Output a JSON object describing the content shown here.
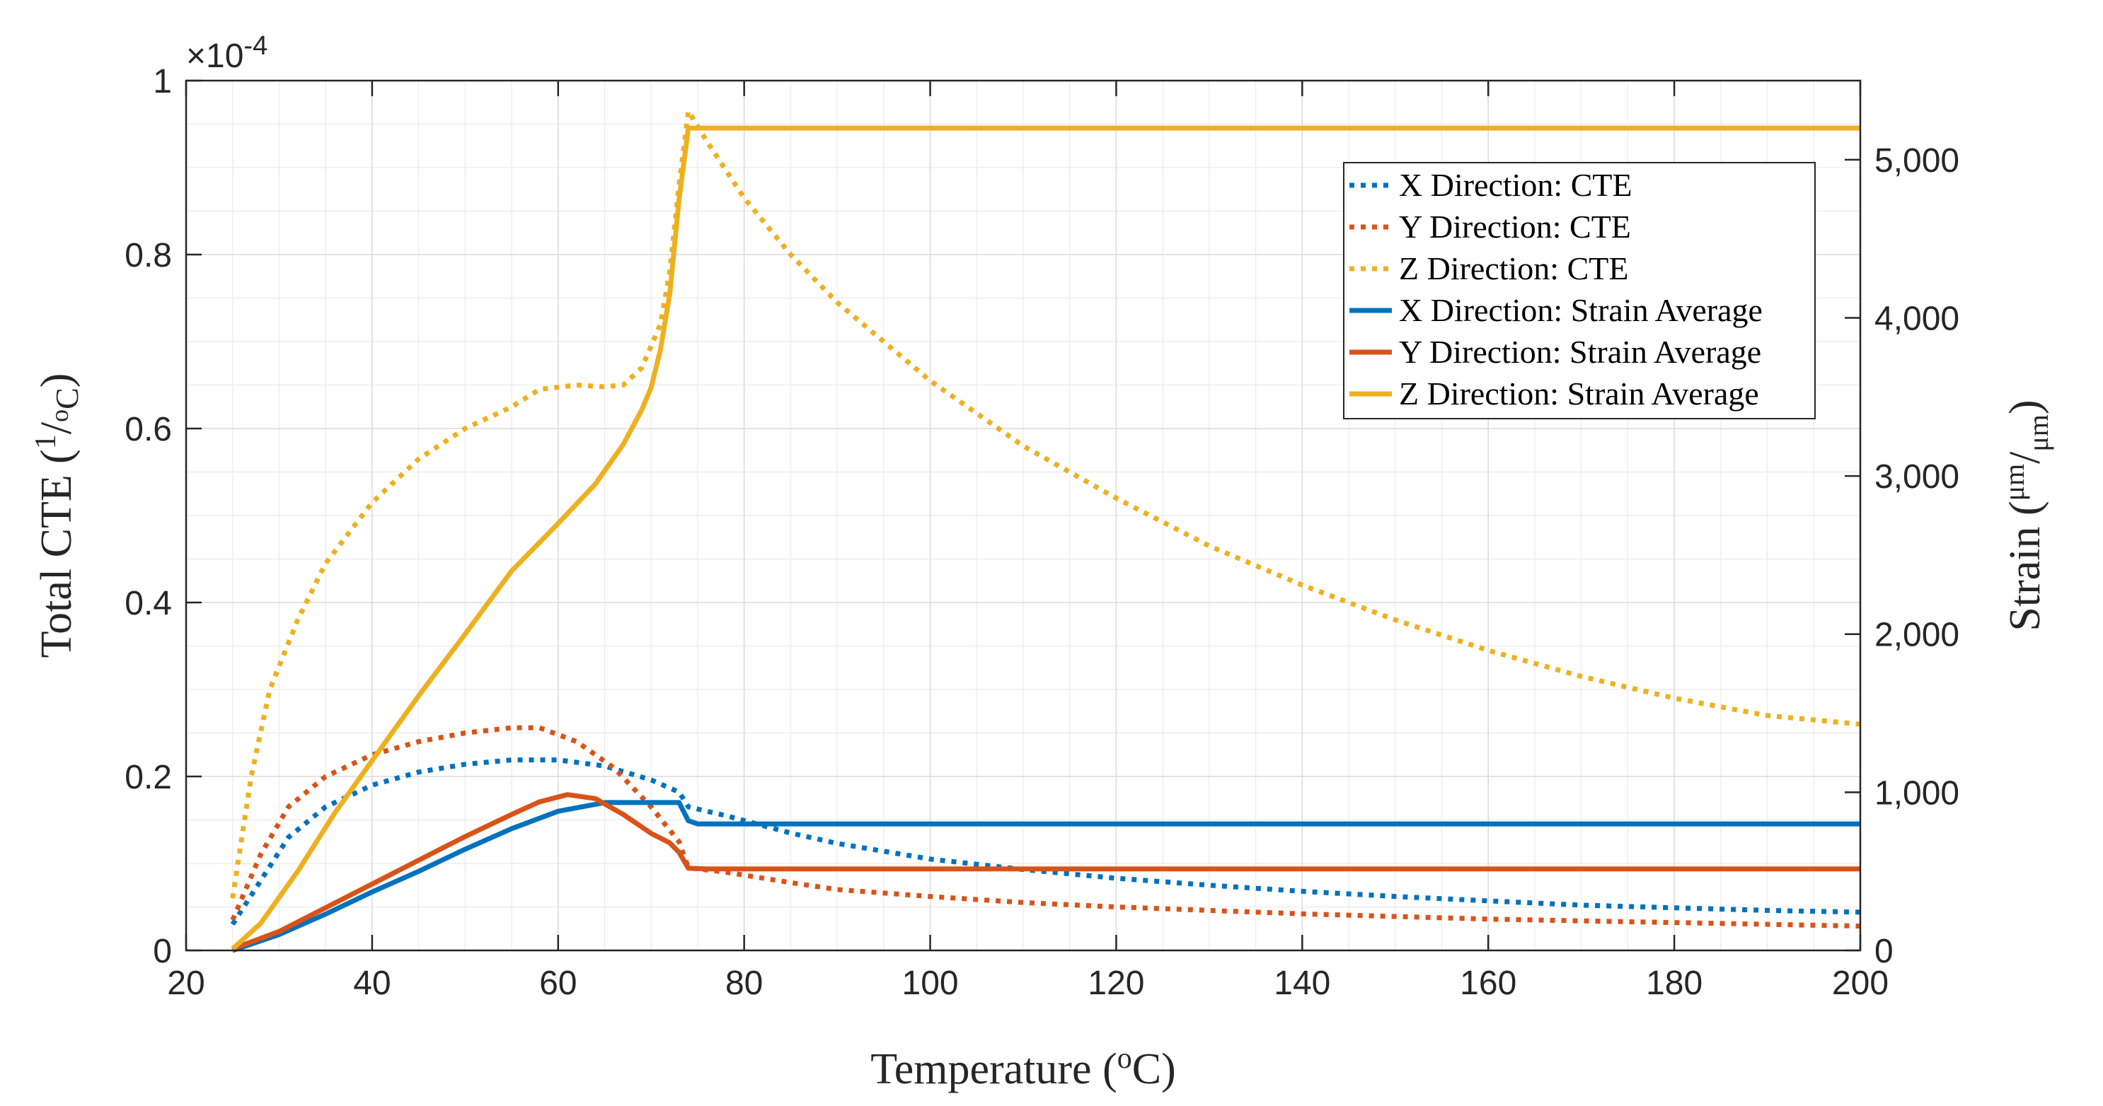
{
  "chart_data": {
    "type": "line",
    "x_axis": {
      "label": "Temperature",
      "label_unit_sup": "o",
      "label_unit": "C",
      "range": [
        20,
        200
      ],
      "ticks": [
        20,
        40,
        60,
        80,
        100,
        120,
        140,
        160,
        180,
        200
      ],
      "tick_labels": [
        "20",
        "40",
        "60",
        "80",
        "100",
        "120",
        "140",
        "160",
        "180",
        "200"
      ]
    },
    "y_left": {
      "label": "Total CTE",
      "label_frac_num": "1",
      "label_frac_den_sup": "o",
      "label_frac_den": "C",
      "range": [
        0,
        1
      ],
      "ticks": [
        0,
        0.2,
        0.4,
        0.6,
        0.8,
        1
      ],
      "tick_labels": [
        "0",
        "0.2",
        "0.4",
        "0.6",
        "0.8",
        "1"
      ],
      "exponent_prefix": "×10",
      "exponent": "-4"
    },
    "y_right": {
      "label": "Strain",
      "label_frac_num": "μm",
      "label_frac_den": "μm",
      "range": [
        0,
        5500
      ],
      "ticks": [
        0,
        1000,
        2000,
        3000,
        4000,
        5000
      ],
      "tick_labels": [
        "0",
        "1,000",
        "2,000",
        "3,000",
        "4,000",
        "5,000"
      ]
    },
    "grid": true,
    "legend_position": "top-right",
    "series": [
      {
        "name": "X Direction: CTE",
        "axis": "left",
        "style": "dotted",
        "color": "#0072BD",
        "points": [
          [
            25,
            0.03
          ],
          [
            28,
            0.08
          ],
          [
            31,
            0.13
          ],
          [
            35,
            0.165
          ],
          [
            40,
            0.19
          ],
          [
            45,
            0.205
          ],
          [
            50,
            0.214
          ],
          [
            55,
            0.219
          ],
          [
            60,
            0.219
          ],
          [
            65,
            0.212
          ],
          [
            70,
            0.196
          ],
          [
            73,
            0.182
          ],
          [
            74,
            0.165
          ],
          [
            78,
            0.155
          ],
          [
            85,
            0.135
          ],
          [
            90,
            0.123
          ],
          [
            100,
            0.105
          ],
          [
            110,
            0.093
          ],
          [
            120,
            0.083
          ],
          [
            130,
            0.075
          ],
          [
            140,
            0.068
          ],
          [
            150,
            0.062
          ],
          [
            160,
            0.057
          ],
          [
            170,
            0.052
          ],
          [
            180,
            0.049
          ],
          [
            190,
            0.046
          ],
          [
            200,
            0.044
          ]
        ]
      },
      {
        "name": "Y Direction: CTE",
        "axis": "left",
        "style": "dotted",
        "color": "#D95319",
        "points": [
          [
            25,
            0.035
          ],
          [
            28,
            0.11
          ],
          [
            31,
            0.165
          ],
          [
            35,
            0.2
          ],
          [
            40,
            0.225
          ],
          [
            45,
            0.24
          ],
          [
            50,
            0.25
          ],
          [
            55,
            0.256
          ],
          [
            58,
            0.256
          ],
          [
            62,
            0.24
          ],
          [
            66,
            0.21
          ],
          [
            70,
            0.165
          ],
          [
            73,
            0.125
          ],
          [
            74,
            0.095
          ],
          [
            78,
            0.09
          ],
          [
            85,
            0.078
          ],
          [
            90,
            0.07
          ],
          [
            100,
            0.062
          ],
          [
            110,
            0.055
          ],
          [
            120,
            0.05
          ],
          [
            130,
            0.046
          ],
          [
            140,
            0.042
          ],
          [
            150,
            0.039
          ],
          [
            160,
            0.036
          ],
          [
            170,
            0.034
          ],
          [
            180,
            0.032
          ],
          [
            190,
            0.03
          ],
          [
            200,
            0.028
          ]
        ]
      },
      {
        "name": "Z Direction: CTE",
        "axis": "left",
        "style": "dotted",
        "color": "#EDB120",
        "points": [
          [
            25,
            0.06
          ],
          [
            27,
            0.2
          ],
          [
            29,
            0.3
          ],
          [
            32,
            0.38
          ],
          [
            35,
            0.445
          ],
          [
            40,
            0.515
          ],
          [
            45,
            0.565
          ],
          [
            50,
            0.6
          ],
          [
            55,
            0.625
          ],
          [
            58,
            0.645
          ],
          [
            62,
            0.65
          ],
          [
            65,
            0.648
          ],
          [
            67,
            0.65
          ],
          [
            69,
            0.67
          ],
          [
            71,
            0.72
          ],
          [
            72,
            0.78
          ],
          [
            73,
            0.88
          ],
          [
            74,
            0.965
          ],
          [
            76,
            0.93
          ],
          [
            80,
            0.865
          ],
          [
            85,
            0.8
          ],
          [
            90,
            0.745
          ],
          [
            100,
            0.655
          ],
          [
            110,
            0.58
          ],
          [
            120,
            0.52
          ],
          [
            130,
            0.465
          ],
          [
            140,
            0.42
          ],
          [
            150,
            0.38
          ],
          [
            160,
            0.345
          ],
          [
            170,
            0.315
          ],
          [
            180,
            0.29
          ],
          [
            190,
            0.27
          ],
          [
            200,
            0.26
          ]
        ]
      },
      {
        "name": "X Direction: Strain Average",
        "axis": "right",
        "style": "solid",
        "color": "#0072BD",
        "points": [
          [
            25,
            0
          ],
          [
            30,
            100
          ],
          [
            35,
            230
          ],
          [
            40,
            370
          ],
          [
            45,
            500
          ],
          [
            50,
            640
          ],
          [
            55,
            770
          ],
          [
            60,
            880
          ],
          [
            65,
            935
          ],
          [
            70,
            935
          ],
          [
            73,
            935
          ],
          [
            74,
            820
          ],
          [
            75,
            800
          ],
          [
            80,
            800
          ],
          [
            100,
            800
          ],
          [
            120,
            800
          ],
          [
            140,
            800
          ],
          [
            160,
            800
          ],
          [
            180,
            800
          ],
          [
            200,
            800
          ]
        ]
      },
      {
        "name": "Y Direction: Strain Average",
        "axis": "right",
        "style": "solid",
        "color": "#D95319",
        "points": [
          [
            25,
            10
          ],
          [
            30,
            120
          ],
          [
            35,
            270
          ],
          [
            40,
            420
          ],
          [
            45,
            570
          ],
          [
            50,
            720
          ],
          [
            55,
            860
          ],
          [
            58,
            940
          ],
          [
            61,
            985
          ],
          [
            64,
            960
          ],
          [
            67,
            860
          ],
          [
            70,
            740
          ],
          [
            72,
            680
          ],
          [
            73,
            620
          ],
          [
            74,
            520
          ],
          [
            76,
            515
          ],
          [
            80,
            515
          ],
          [
            100,
            515
          ],
          [
            120,
            515
          ],
          [
            140,
            515
          ],
          [
            160,
            515
          ],
          [
            180,
            515
          ],
          [
            200,
            515
          ]
        ]
      },
      {
        "name": "Z Direction: Strain Average",
        "axis": "right",
        "style": "solid",
        "color": "#EDB120",
        "points": [
          [
            25,
            10
          ],
          [
            28,
            170
          ],
          [
            32,
            500
          ],
          [
            36,
            870
          ],
          [
            40,
            1200
          ],
          [
            45,
            1610
          ],
          [
            50,
            2000
          ],
          [
            55,
            2400
          ],
          [
            60,
            2700
          ],
          [
            64,
            2950
          ],
          [
            67,
            3200
          ],
          [
            69,
            3420
          ],
          [
            70,
            3560
          ],
          [
            71,
            3800
          ],
          [
            72,
            4150
          ],
          [
            73,
            4750
          ],
          [
            74,
            5200
          ],
          [
            75,
            5200
          ],
          [
            80,
            5200
          ],
          [
            100,
            5200
          ],
          [
            120,
            5200
          ],
          [
            140,
            5200
          ],
          [
            160,
            5200
          ],
          [
            180,
            5200
          ],
          [
            200,
            5200
          ]
        ]
      }
    ]
  }
}
